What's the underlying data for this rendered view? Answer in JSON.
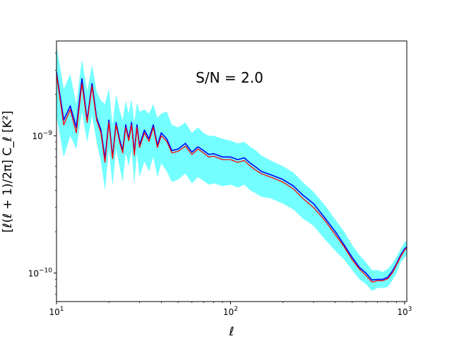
{
  "chart_data": {
    "type": "line",
    "title": "",
    "annotation": "S/N = 2.0",
    "xlabel": "ℓ",
    "ylabel": "[ℓ(ℓ + 1)/2π] C_ℓ [K²]",
    "xscale": "log",
    "yscale": "log",
    "xlim": [
      10,
      1030
    ],
    "ylim": [
      6.2e-11,
      4.9e-09
    ],
    "grid": false,
    "legend": "none",
    "x_ticks": [
      {
        "value": 10,
        "base": "10",
        "exp": "1"
      },
      {
        "value": 100,
        "base": "10",
        "exp": "2"
      },
      {
        "value": 1000,
        "base": "10",
        "exp": "3"
      }
    ],
    "y_ticks": [
      {
        "value": 1e-10,
        "base": "10",
        "exp": "−10"
      },
      {
        "value": 1e-09,
        "base": "10",
        "exp": "−9"
      }
    ],
    "colors": {
      "band": "#00ffff",
      "series_blue": "#0000ff",
      "series_red": "#ff0000"
    },
    "x": [
      10,
      11,
      12,
      13,
      14,
      15,
      16,
      17,
      18,
      19,
      20,
      21,
      22,
      23,
      24,
      25,
      26,
      27,
      28,
      29,
      30,
      32,
      34,
      36,
      38,
      40,
      43,
      46,
      50,
      55,
      60,
      65,
      70,
      75,
      80,
      90,
      100,
      110,
      120,
      130,
      140,
      150,
      170,
      200,
      230,
      260,
      300,
      350,
      400,
      450,
      500,
      550,
      600,
      650,
      700,
      750,
      800,
      850,
      900,
      950,
      1000,
      1030
    ],
    "series": [
      {
        "role": "band",
        "lower": [
          1.4e-09,
          7e-10,
          1e-09,
          8e-10,
          1.5e-09,
          9e-10,
          1.4e-09,
          9e-10,
          6.5e-10,
          4e-10,
          8e-10,
          4.3e-10,
          8e-10,
          6e-10,
          4.6e-10,
          7.5e-10,
          6e-10,
          7.8e-10,
          4.5e-10,
          7.5e-10,
          5e-10,
          6.5e-10,
          5.5e-10,
          7e-10,
          5e-10,
          6.3e-10,
          5.5e-10,
          4.6e-10,
          4.8e-10,
          5.3e-10,
          4.5e-10,
          5e-10,
          4.7e-10,
          4.4e-10,
          4.5e-10,
          4.3e-10,
          4.4e-10,
          4.2e-10,
          4.4e-10,
          4e-10,
          3.8e-10,
          3.6e-10,
          3.5e-10,
          3.2e-10,
          2.9e-10,
          2.5e-10,
          2.2e-10,
          1.75e-10,
          1.45e-10,
          1.25e-10,
          1.05e-10,
          9e-11,
          8.3e-11,
          7.4e-11,
          7.8e-11,
          7.8e-11,
          7.9e-11,
          8.8e-11,
          1e-10,
          1.2e-10,
          1.3e-10,
          1.35e-10
        ],
        "upper": [
          4.5e-09,
          2.2e-09,
          2.8e-09,
          1.7e-09,
          3.6e-09,
          2.1e-09,
          3.3e-09,
          2.1e-09,
          1.8e-09,
          1.7e-09,
          2.2e-09,
          1.2e-09,
          2e-09,
          1.55e-09,
          1.3e-09,
          1.8e-09,
          1.45e-09,
          1.85e-09,
          1.25e-09,
          1.75e-09,
          1.5e-09,
          1.55e-09,
          1.45e-09,
          1.7e-09,
          1.35e-09,
          1.45e-09,
          1.5e-09,
          1.2e-09,
          1.15e-09,
          1.25e-09,
          1.05e-09,
          1.15e-09,
          1.05e-09,
          1e-09,
          1e-09,
          9.5e-10,
          9.2e-10,
          8.8e-10,
          9e-10,
          8.3e-10,
          7.8e-10,
          7.2e-10,
          6.6e-10,
          6e-10,
          5.4e-10,
          4.6e-10,
          3.9e-10,
          3.1e-10,
          2.45e-10,
          2e-10,
          1.6e-10,
          1.35e-10,
          1.2e-10,
          1.05e-10,
          1.05e-10,
          1.02e-10,
          1.07e-10,
          1.17e-10,
          1.32e-10,
          1.5e-10,
          1.68e-10,
          1.72e-10
        ]
      },
      {
        "role": "blue",
        "values": [
          2.9e-09,
          1.3e-09,
          1.65e-09,
          1.15e-09,
          2.6e-09,
          1.3e-09,
          2.4e-09,
          1.35e-09,
          1.1e-09,
          6.8e-10,
          1.3e-09,
          7e-10,
          1.25e-09,
          9.5e-10,
          7.8e-10,
          1.2e-09,
          9.5e-10,
          1.25e-09,
          7.5e-10,
          1.2e-09,
          8.5e-10,
          1.1e-09,
          9.5e-10,
          1.2e-09,
          8.5e-10,
          1.05e-09,
          9.5e-10,
          7.8e-10,
          8e-10,
          8.8e-10,
          7.6e-10,
          8.3e-10,
          7.8e-10,
          7.3e-10,
          7.4e-10,
          7e-10,
          7e-10,
          6.7e-10,
          6.9e-10,
          6.3e-10,
          5.9e-10,
          5.5e-10,
          5.2e-10,
          4.8e-10,
          4.3e-10,
          3.7e-10,
          3.2e-10,
          2.5e-10,
          2e-10,
          1.6e-10,
          1.3e-10,
          1.1e-10,
          1e-10,
          8.9e-11,
          9e-11,
          9e-11,
          9.3e-11,
          1.03e-10,
          1.17e-10,
          1.35e-10,
          1.5e-10,
          1.55e-10
        ]
      },
      {
        "role": "red",
        "values": [
          2.8e-09,
          1.2e-09,
          1.55e-09,
          1.05e-09,
          2.4e-09,
          1.25e-09,
          2.3e-09,
          1.3e-09,
          1.05e-09,
          6.4e-10,
          1.25e-09,
          6.8e-10,
          1.2e-09,
          9.1e-10,
          7.5e-10,
          1.15e-09,
          9.2e-10,
          1.2e-09,
          7.2e-10,
          1.15e-09,
          8.2e-10,
          1.05e-09,
          9.1e-10,
          1.15e-09,
          8.2e-10,
          1e-09,
          9.1e-10,
          7.5e-10,
          7.7e-10,
          8.4e-10,
          7.3e-10,
          8e-10,
          7.5e-10,
          7e-10,
          7.1e-10,
          6.7e-10,
          6.7e-10,
          6.4e-10,
          6.6e-10,
          6e-10,
          5.6e-10,
          5.3e-10,
          5e-10,
          4.6e-10,
          4.1e-10,
          3.5e-10,
          3e-10,
          2.4e-10,
          1.9e-10,
          1.55e-10,
          1.25e-10,
          1.07e-10,
          9.6e-11,
          8.6e-11,
          8.8e-11,
          8.8e-11,
          9.1e-11,
          1e-10,
          1.15e-10,
          1.32e-10,
          1.47e-10,
          1.52e-10
        ]
      }
    ]
  }
}
